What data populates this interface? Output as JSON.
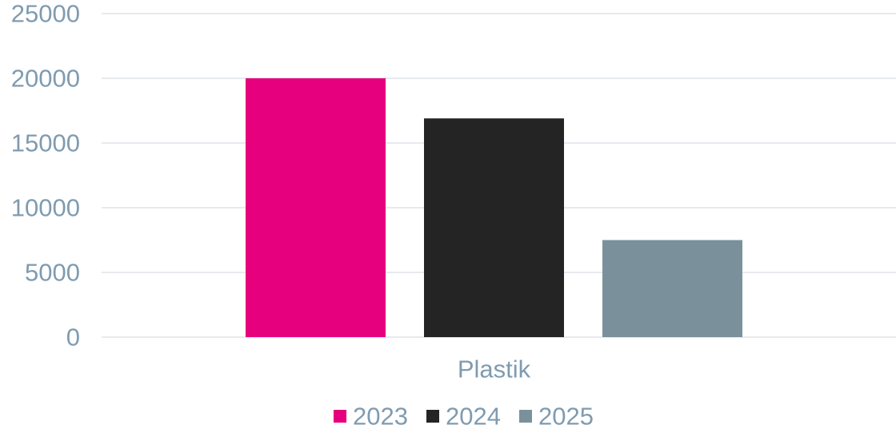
{
  "chart_data": {
    "type": "bar",
    "categories": [
      "Plastik"
    ],
    "series": [
      {
        "name": "2023",
        "values": [
          20000
        ],
        "color": "#e6007e"
      },
      {
        "name": "2024",
        "values": [
          16900
        ],
        "color": "#242424"
      },
      {
        "name": "2025",
        "values": [
          7500
        ],
        "color": "#7a919c"
      }
    ],
    "ylim": [
      0,
      25000
    ],
    "yticks": [
      "0",
      "5000",
      "10000",
      "15000",
      "20000",
      "25000"
    ],
    "grid": true,
    "legend": "bottom",
    "label_color": "#7f9bb0",
    "grid_color": "#dde3e8"
  }
}
